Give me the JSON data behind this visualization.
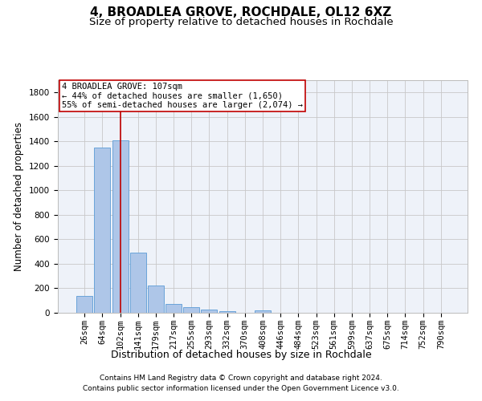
{
  "title1": "4, BROADLEA GROVE, ROCHDALE, OL12 6XZ",
  "title2": "Size of property relative to detached houses in Rochdale",
  "xlabel": "Distribution of detached houses by size in Rochdale",
  "ylabel": "Number of detached properties",
  "footnote1": "Contains HM Land Registry data © Crown copyright and database right 2024.",
  "footnote2": "Contains public sector information licensed under the Open Government Licence v3.0.",
  "bar_labels": [
    "26sqm",
    "64sqm",
    "102sqm",
    "141sqm",
    "179sqm",
    "217sqm",
    "255sqm",
    "293sqm",
    "332sqm",
    "370sqm",
    "408sqm",
    "446sqm",
    "484sqm",
    "523sqm",
    "561sqm",
    "599sqm",
    "637sqm",
    "675sqm",
    "714sqm",
    "752sqm",
    "790sqm"
  ],
  "bar_values": [
    135,
    1350,
    1410,
    490,
    225,
    75,
    43,
    27,
    13,
    0,
    20,
    0,
    0,
    0,
    0,
    0,
    0,
    0,
    0,
    0,
    0
  ],
  "bar_color": "#aec6e8",
  "bar_edge_color": "#5b9bd5",
  "highlight_bar_index": 2,
  "highlight_color": "#c00000",
  "property_name": "4 BROADLEA GROVE: 107sqm",
  "annotation_line1": "← 44% of detached houses are smaller (1,650)",
  "annotation_line2": "55% of semi-detached houses are larger (2,074) →",
  "ylim": [
    0,
    1900
  ],
  "yticks": [
    0,
    200,
    400,
    600,
    800,
    1000,
    1200,
    1400,
    1600,
    1800
  ],
  "bg_color": "#eef2f9",
  "grid_color": "#c8c8c8",
  "title1_fontsize": 11,
  "title2_fontsize": 9.5,
  "ylabel_fontsize": 8.5,
  "xlabel_fontsize": 9,
  "tick_fontsize": 7.5,
  "annotation_fontsize": 7.5,
  "footnote_fontsize": 6.5
}
